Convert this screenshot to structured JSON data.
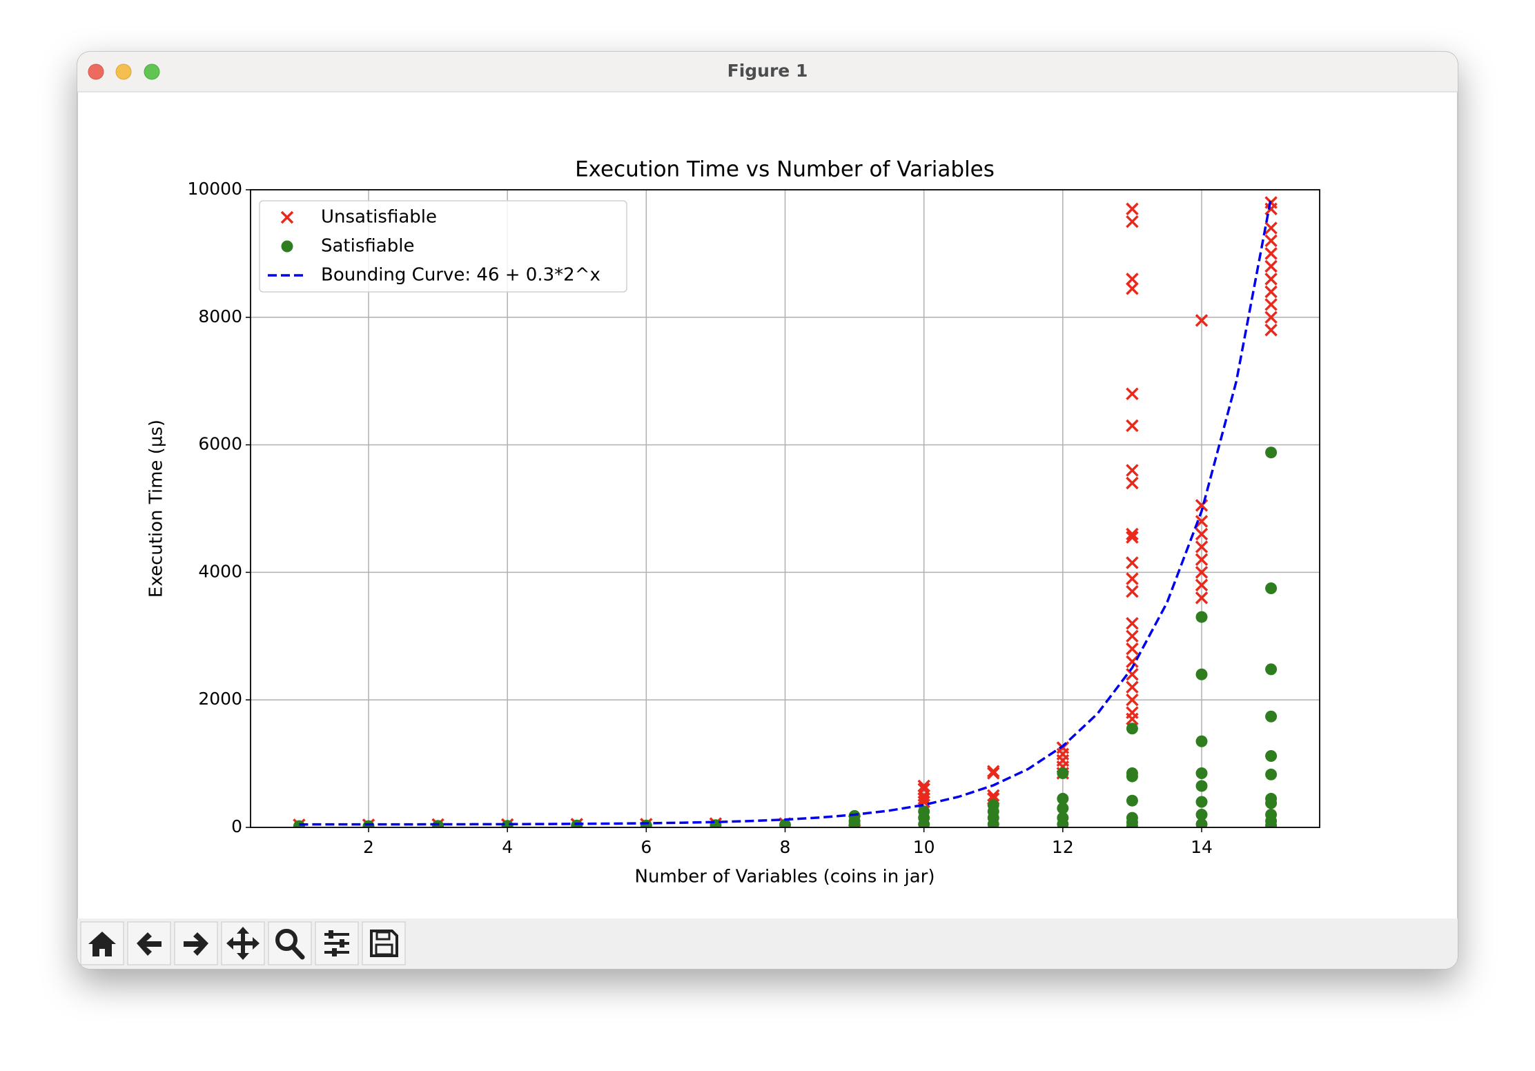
{
  "window": {
    "title": "Figure 1"
  },
  "chart_data": {
    "type": "scatter",
    "title": "Execution Time vs Number of Variables",
    "x_label": "Number of Variables (coins in jar)",
    "y_label": "Execution Time (µs)",
    "xlim": [
      0.3,
      15.7
    ],
    "ylim": [
      0,
      10000
    ],
    "xticks": [
      2,
      4,
      6,
      8,
      10,
      12,
      14
    ],
    "yticks": [
      0,
      2000,
      4000,
      6000,
      8000,
      10000
    ],
    "grid": true,
    "legend": "upper-left",
    "series": [
      {
        "name": "Unsatisfiable",
        "color": "#e8291c",
        "marker": "x",
        "x": [
          1,
          2,
          3,
          4,
          5,
          6,
          7,
          8,
          9,
          10,
          10,
          10,
          10,
          10,
          11,
          11,
          11,
          11,
          12,
          12,
          12,
          12,
          12,
          13,
          13,
          13,
          13,
          13,
          13,
          13,
          13,
          13,
          13,
          13,
          13,
          13,
          13,
          13,
          13,
          13,
          13,
          13,
          13,
          13,
          13,
          14,
          14,
          14,
          14,
          14,
          14,
          14,
          14,
          14,
          15,
          15,
          15,
          15,
          15,
          15,
          15,
          15,
          15,
          15,
          15
        ],
        "values": [
          40,
          40,
          45,
          45,
          50,
          50,
          60,
          60,
          100,
          650,
          600,
          500,
          450,
          400,
          880,
          850,
          500,
          450,
          1250,
          1150,
          1050,
          950,
          850,
          9700,
          9500,
          8600,
          8450,
          6800,
          6300,
          5600,
          5400,
          4600,
          4550,
          4150,
          3900,
          3700,
          3200,
          3000,
          2800,
          2600,
          2400,
          2200,
          2000,
          1800,
          1700,
          7950,
          5050,
          4800,
          4600,
          4400,
          4200,
          4000,
          3800,
          3600,
          9800,
          9700,
          9400,
          9200,
          9000,
          8800,
          8600,
          8400,
          8200,
          8000,
          7800
        ]
      },
      {
        "name": "Satisfiable",
        "color": "#2e7d1f",
        "marker": "o",
        "x": [
          1,
          2,
          3,
          4,
          5,
          6,
          7,
          8,
          9,
          9,
          9,
          10,
          10,
          10,
          11,
          11,
          11,
          11,
          12,
          12,
          12,
          12,
          12,
          13,
          13,
          13,
          13,
          13,
          13,
          13,
          14,
          14,
          14,
          14,
          14,
          14,
          14,
          14,
          15,
          15,
          15,
          15,
          15,
          15,
          15,
          15,
          15,
          15,
          15
        ],
        "values": [
          20,
          20,
          25,
          25,
          30,
          30,
          35,
          40,
          180,
          100,
          50,
          250,
          150,
          50,
          350,
          250,
          150,
          50,
          850,
          450,
          300,
          150,
          50,
          1550,
          850,
          800,
          420,
          150,
          80,
          20,
          3300,
          2400,
          1350,
          850,
          650,
          400,
          200,
          50,
          5880,
          3750,
          2480,
          1740,
          1120,
          830,
          450,
          380,
          200,
          100,
          30
        ]
      },
      {
        "name": "Bounding Curve: 46 + 0.3*2^x",
        "color": "#0000ee",
        "type": "line",
        "dashed": true,
        "x": [
          1,
          1.5,
          2,
          2.5,
          3,
          3.5,
          4,
          4.5,
          5,
          5.5,
          6,
          6.5,
          7,
          7.5,
          8,
          8.5,
          9,
          9.5,
          10,
          10.5,
          11,
          11.5,
          12,
          12.5,
          13,
          13.5,
          14,
          14.5,
          15
        ],
        "values": [
          46.6,
          46.85,
          47.2,
          47.7,
          48.4,
          49.4,
          50.8,
          52.8,
          55.6,
          59.6,
          65.2,
          73.2,
          84.4,
          100.3,
          122.8,
          154.6,
          199.6,
          263.2,
          353.2,
          480.5,
          660.4,
          914.9,
          1274.8,
          1783.8,
          2503.6,
          3521.6,
          4961.2,
          6997,
          9876.4
        ]
      }
    ]
  }
}
